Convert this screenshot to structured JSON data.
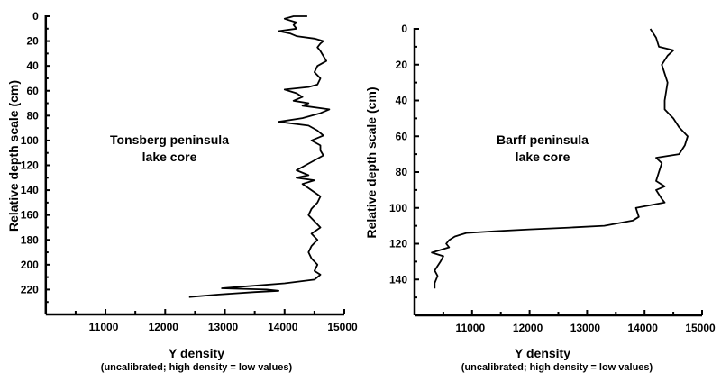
{
  "chart_data": [
    {
      "type": "line",
      "annotation": [
        "Tonsberg peninsula",
        "lake core"
      ],
      "xlabel": "Y density",
      "xlabel_sub": "(uncalibrated; high density = low values)",
      "ylabel": "Relative depth scale (cm)",
      "xlim": [
        10000,
        15000
      ],
      "ylim": [
        0,
        240
      ],
      "y_inverted": true,
      "xticks": [
        11000,
        12000,
        13000,
        14000,
        15000
      ],
      "yticks": [
        0,
        20,
        40,
        60,
        80,
        100,
        120,
        140,
        160,
        180,
        200,
        220
      ],
      "grid": false,
      "series": [
        {
          "name": "Tonsberg peninsula lake core",
          "depth": [
            0,
            0,
            2,
            5,
            7,
            10,
            12,
            14,
            16,
            18,
            20,
            22,
            25,
            28,
            32,
            36,
            40,
            45,
            50,
            55,
            57,
            59,
            62,
            65,
            68,
            70,
            72,
            75,
            78,
            82,
            85,
            88,
            92,
            96,
            100,
            104,
            108,
            112,
            116,
            120,
            124,
            128,
            130,
            132,
            135,
            140,
            145,
            150,
            155,
            160,
            165,
            170,
            175,
            180,
            185,
            190,
            195,
            200,
            205,
            208,
            212,
            215,
            218,
            219,
            220,
            221,
            222,
            224,
            226
          ],
          "value": [
            14380,
            14150,
            14000,
            14200,
            14150,
            14200,
            13900,
            14100,
            14200,
            14500,
            14650,
            14600,
            14550,
            14600,
            14650,
            14700,
            14550,
            14500,
            14600,
            14550,
            14400,
            14000,
            14200,
            14300,
            14150,
            14400,
            14300,
            14750,
            14600,
            14300,
            13900,
            14400,
            14550,
            14650,
            14450,
            14600,
            14600,
            14650,
            14500,
            14350,
            14200,
            14400,
            14200,
            14500,
            14300,
            14450,
            14600,
            14550,
            14450,
            14400,
            14500,
            14600,
            14450,
            14550,
            14450,
            14400,
            14450,
            14550,
            14500,
            14600,
            14500,
            14000,
            13200,
            12950,
            13700,
            13900,
            13500,
            12900,
            12400
          ]
        }
      ]
    },
    {
      "type": "line",
      "annotation": [
        "Barff peninsula",
        "lake core"
      ],
      "xlabel": "Y density",
      "xlabel_sub": "(uncalibrated; high density = low values)",
      "ylabel": "Relative depth scale (cm)",
      "xlim": [
        10000,
        15000
      ],
      "ylim": [
        0,
        160
      ],
      "y_inverted": true,
      "xticks": [
        11000,
        12000,
        13000,
        14000,
        15000
      ],
      "yticks": [
        0,
        20,
        40,
        60,
        80,
        100,
        120,
        140
      ],
      "grid": false,
      "series": [
        {
          "name": "Barff peninsula lake core",
          "depth": [
            0,
            5,
            10,
            12,
            15,
            20,
            25,
            30,
            40,
            45,
            50,
            55,
            60,
            65,
            70,
            72,
            75,
            80,
            85,
            88,
            90,
            95,
            97,
            100,
            105,
            107,
            110,
            111,
            112,
            113,
            114,
            116,
            118,
            120,
            122,
            125,
            127,
            130,
            135,
            138,
            142,
            145
          ],
          "value": [
            14100,
            14200,
            14250,
            14500,
            14400,
            14300,
            14350,
            14400,
            14350,
            14350,
            14500,
            14600,
            14750,
            14700,
            14600,
            14200,
            14300,
            14250,
            14200,
            14350,
            14200,
            14300,
            14350,
            13850,
            13900,
            13800,
            13300,
            12700,
            12000,
            11400,
            10900,
            10700,
            10600,
            10550,
            10600,
            10300,
            10500,
            10450,
            10350,
            10400,
            10350,
            10350
          ]
        }
      ]
    }
  ]
}
